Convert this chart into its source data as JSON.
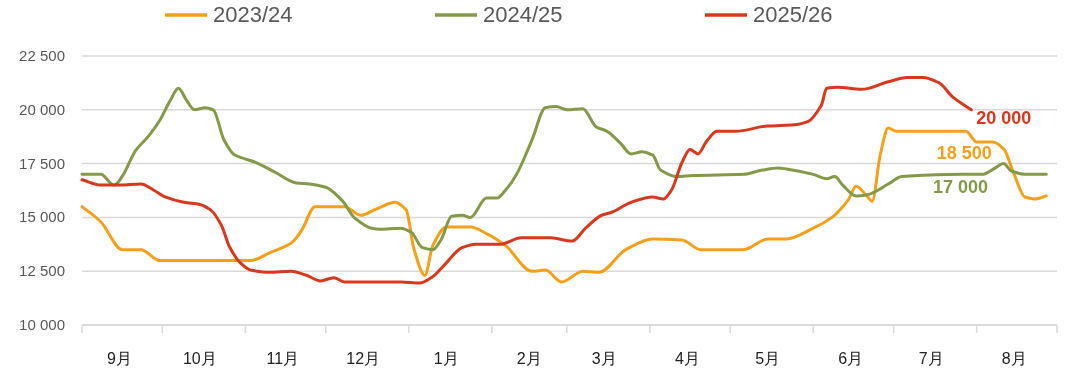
{
  "chart_data": {
    "type": "line",
    "xlim": [
      "2025-09-01",
      "2026-08-31"
    ],
    "ylim": [
      10000,
      22500
    ],
    "yticks": [
      {
        "value": 10000,
        "label": "10 000"
      },
      {
        "value": 12500,
        "label": "12 500"
      },
      {
        "value": 15000,
        "label": "15 000"
      },
      {
        "value": 17500,
        "label": "17 500"
      },
      {
        "value": 20000,
        "label": "20 000"
      },
      {
        "value": 22500,
        "label": "22 500"
      }
    ],
    "xticks": [
      {
        "value": "2025-09-15",
        "label": "9月"
      },
      {
        "value": "2025-10-15",
        "label": "10月"
      },
      {
        "value": "2025-11-15",
        "label": "11月"
      },
      {
        "value": "2025-12-15",
        "label": "12月"
      },
      {
        "value": "2026-01-15",
        "label": "1月"
      },
      {
        "value": "2026-02-15",
        "label": "2月"
      },
      {
        "value": "2026-03-15",
        "label": "3月"
      },
      {
        "value": "2026-04-15",
        "label": "4月"
      },
      {
        "value": "2026-05-15",
        "label": "5月"
      },
      {
        "value": "2026-06-15",
        "label": "6月"
      },
      {
        "value": "2026-07-15",
        "label": "7月"
      },
      {
        "value": "2026-08-15",
        "label": "8月"
      },
      {
        "value": "2025-09-01",
        "label": null
      },
      {
        "value": "2025-10-01",
        "label": null
      },
      {
        "value": "2025-11-01",
        "label": null
      },
      {
        "value": "2025-12-01",
        "label": null
      },
      {
        "value": "2026-01-01",
        "label": null
      },
      {
        "value": "2026-02-01",
        "label": null
      },
      {
        "value": "2026-03-01",
        "label": null
      },
      {
        "value": "2026-04-01",
        "label": null
      },
      {
        "value": "2026-05-01",
        "label": null
      },
      {
        "value": "2026-06-01",
        "label": null
      },
      {
        "value": "2026-07-01",
        "label": null
      },
      {
        "value": "2026-08-01",
        "label": null
      },
      {
        "value": "2026-08-31",
        "label": null
      }
    ],
    "grid": "y",
    "legend": "top",
    "marker": "none",
    "line_style": "solid",
    "series": [
      {
        "name": "2023/24",
        "color": "#f5a01a",
        "x": [
          "2025-09-01",
          "2025-09-08",
          "2025-09-16",
          "2025-09-23",
          "2025-09-30",
          "2025-10-15",
          "2025-11-03",
          "2025-11-10",
          "2025-11-18",
          "2025-11-22",
          "2025-11-27",
          "2025-12-03",
          "2025-12-08",
          "2025-12-14",
          "2025-12-20",
          "2025-12-27",
          "2025-12-31",
          "2026-01-03",
          "2026-01-07",
          "2026-01-10",
          "2026-01-15",
          "2026-01-24",
          "2026-01-30",
          "2026-02-06",
          "2026-02-16",
          "2026-02-21",
          "2026-02-27",
          "2026-03-07",
          "2026-03-13",
          "2026-03-23",
          "2026-04-02",
          "2026-04-13",
          "2026-04-20",
          "2026-04-28",
          "2026-05-06",
          "2026-05-15",
          "2026-05-22",
          "2026-06-01",
          "2026-06-08",
          "2026-06-14",
          "2026-06-17",
          "2026-06-21",
          "2026-06-23",
          "2026-06-26",
          "2026-06-29",
          "2026-07-02",
          "2026-07-21",
          "2026-07-28",
          "2026-08-01",
          "2026-08-07",
          "2026-08-11",
          "2026-08-15",
          "2026-08-19",
          "2026-08-23",
          "2026-08-27"
        ],
        "values": [
          15500,
          14800,
          13500,
          13500,
          13000,
          13000,
          13000,
          13350,
          13800,
          14400,
          15500,
          15500,
          15500,
          15100,
          15400,
          15700,
          15350,
          13500,
          12300,
          13700,
          14550,
          14550,
          14250,
          13700,
          12500,
          12550,
          12000,
          12500,
          12450,
          13500,
          14000,
          13950,
          13500,
          13500,
          13500,
          14000,
          14000,
          14500,
          15000,
          15800,
          16450,
          16000,
          15750,
          17900,
          19150,
          19000,
          19000,
          19000,
          18500,
          18500,
          18200,
          17000,
          15950,
          15850,
          16000
        ]
      },
      {
        "name": "2024/25",
        "color": "#84994a",
        "x": [
          "2025-09-01",
          "2025-09-08",
          "2025-09-13",
          "2025-09-16",
          "2025-09-21",
          "2025-09-26",
          "2025-09-30",
          "2025-10-04",
          "2025-10-07",
          "2025-10-10",
          "2025-10-13",
          "2025-10-17",
          "2025-10-20",
          "2025-10-24",
          "2025-10-28",
          "2025-11-05",
          "2025-11-12",
          "2025-11-20",
          "2025-11-25",
          "2025-12-01",
          "2025-12-07",
          "2025-12-12",
          "2025-12-18",
          "2025-12-21",
          "2025-12-29",
          "2026-01-02",
          "2026-01-06",
          "2026-01-10",
          "2026-01-13",
          "2026-01-17",
          "2026-01-21",
          "2026-01-24",
          "2026-01-30",
          "2026-02-03",
          "2026-02-06",
          "2026-02-10",
          "2026-02-16",
          "2026-02-21",
          "2026-02-25",
          "2026-03-01",
          "2026-03-07",
          "2026-03-12",
          "2026-03-16",
          "2026-03-21",
          "2026-03-25",
          "2026-03-29",
          "2026-04-02",
          "2026-04-05",
          "2026-04-11",
          "2026-04-17",
          "2026-05-06",
          "2026-05-13",
          "2026-05-19",
          "2026-05-22",
          "2026-06-01",
          "2026-06-06",
          "2026-06-09",
          "2026-06-12",
          "2026-06-17",
          "2026-06-21",
          "2026-06-29",
          "2026-07-04",
          "2026-07-10",
          "2026-07-27",
          "2026-08-03",
          "2026-08-08",
          "2026-08-11",
          "2026-08-14",
          "2026-08-19",
          "2026-08-27"
        ],
        "values": [
          17000,
          17000,
          16500,
          16900,
          18100,
          18800,
          19500,
          20450,
          21000,
          20450,
          20000,
          20100,
          20000,
          18600,
          17900,
          17550,
          17100,
          16600,
          16550,
          16400,
          15800,
          14950,
          14500,
          14450,
          14500,
          14300,
          13600,
          13500,
          13950,
          15050,
          15100,
          15000,
          15900,
          15900,
          16250,
          16950,
          18600,
          20100,
          20150,
          20000,
          20050,
          19200,
          19000,
          18450,
          17950,
          18050,
          17900,
          17200,
          16900,
          16950,
          17000,
          17200,
          17300,
          17250,
          17000,
          16800,
          16900,
          16500,
          16000,
          16050,
          16550,
          16900,
          16950,
          17000,
          17000,
          17300,
          17500,
          17150,
          17000,
          17000
        ]
      },
      {
        "name": "2025/26",
        "color": "#d9381e",
        "x": [
          "2025-09-01",
          "2025-09-08",
          "2025-09-15",
          "2025-09-23",
          "2025-09-28",
          "2025-10-02",
          "2025-10-09",
          "2025-10-15",
          "2025-10-19",
          "2025-10-23",
          "2025-10-26",
          "2025-10-30",
          "2025-11-03",
          "2025-11-10",
          "2025-11-18",
          "2025-11-24",
          "2025-11-29",
          "2025-12-04",
          "2025-12-08",
          "2025-12-29",
          "2026-01-05",
          "2026-01-10",
          "2026-01-14",
          "2026-01-21",
          "2026-01-26",
          "2026-02-04",
          "2026-02-12",
          "2026-02-23",
          "2026-03-03",
          "2026-03-08",
          "2026-03-14",
          "2026-03-18",
          "2026-03-25",
          "2026-04-02",
          "2026-04-06",
          "2026-04-09",
          "2026-04-13",
          "2026-04-16",
          "2026-04-19",
          "2026-04-22",
          "2026-04-26",
          "2026-05-03",
          "2026-05-15",
          "2026-05-25",
          "2026-05-30",
          "2026-06-04",
          "2026-06-06",
          "2026-06-10",
          "2026-06-19",
          "2026-06-29",
          "2026-07-06",
          "2026-07-12",
          "2026-07-18",
          "2026-07-23",
          "2026-07-30"
        ],
        "values": [
          16750,
          16500,
          16500,
          16550,
          16250,
          15950,
          15700,
          15600,
          15350,
          14650,
          13650,
          12900,
          12550,
          12450,
          12500,
          12300,
          12050,
          12200,
          12000,
          12000,
          11950,
          12250,
          12750,
          13600,
          13750,
          13750,
          14050,
          14050,
          13900,
          14500,
          15100,
          15250,
          15700,
          15950,
          15850,
          16250,
          17550,
          18150,
          17950,
          18500,
          19000,
          19000,
          19250,
          19300,
          19450,
          20200,
          21000,
          21050,
          20950,
          21300,
          21500,
          21500,
          21250,
          20600,
          20000
        ]
      }
    ],
    "annotations": [
      {
        "text": "20 000",
        "x": "2026-07-30",
        "y": 20000
      },
      {
        "text": "18 500",
        "x": "2026-08-07",
        "y": 18500
      },
      {
        "text": "17 000",
        "x": "2026-08-03",
        "y": 17000
      }
    ]
  }
}
